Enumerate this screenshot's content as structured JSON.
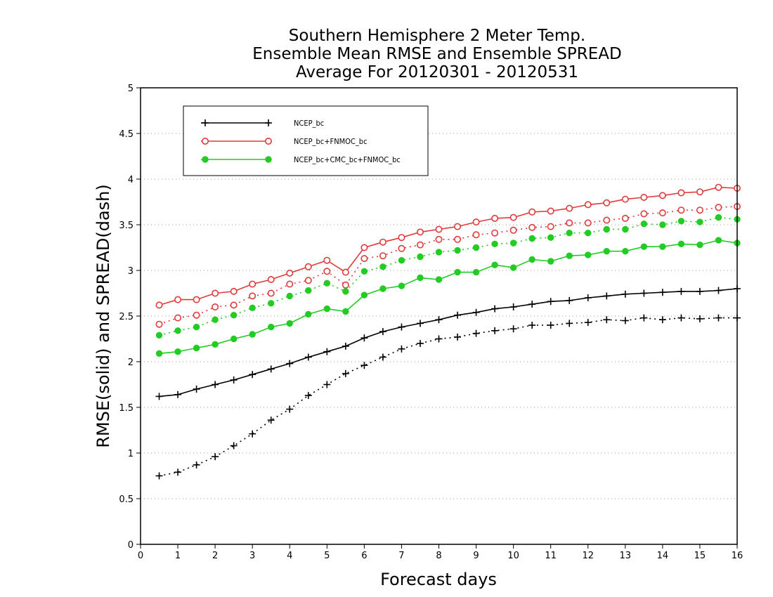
{
  "chart_data": {
    "type": "line",
    "title": [
      "Southern Hemisphere 2 Meter Temp.",
      "Ensemble Mean RMSE and Ensemble SPREAD",
      "Average For 20120301 - 20120531"
    ],
    "xlabel": "Forecast days",
    "ylabel": "RMSE(solid) and SPREAD(dash)",
    "xlim": [
      0,
      16
    ],
    "ylim": [
      0,
      5
    ],
    "x_ticks": [
      "0",
      "1",
      "2",
      "3",
      "4",
      "5",
      "6",
      "7",
      "8",
      "9",
      "10",
      "11",
      "12",
      "13",
      "14",
      "15",
      "16"
    ],
    "y_ticks": [
      "0",
      "0.5",
      "1",
      "1.5",
      "2",
      "2.5",
      "3",
      "3.5",
      "4",
      "4.5",
      "5"
    ],
    "grid": "horizontal dotted",
    "legend_position": "top-left",
    "x": [
      0.5,
      1,
      1.5,
      2,
      2.5,
      3,
      3.5,
      4,
      4.5,
      5,
      5.5,
      6,
      6.5,
      7,
      7.5,
      8,
      8.5,
      9,
      9.5,
      10,
      10.5,
      11,
      11.5,
      12,
      12.5,
      13,
      13.5,
      14,
      14.5,
      15,
      15.5,
      16
    ],
    "series": [
      {
        "name": "NCEP_bc",
        "color": "#000000",
        "marker": "plus",
        "rmse": [
          1.62,
          1.64,
          1.7,
          1.75,
          1.8,
          1.86,
          1.92,
          1.98,
          2.05,
          2.11,
          2.17,
          2.26,
          2.33,
          2.38,
          2.42,
          2.46,
          2.51,
          2.54,
          2.58,
          2.6,
          2.63,
          2.66,
          2.67,
          2.7,
          2.72,
          2.74,
          2.75,
          2.76,
          2.77,
          2.77,
          2.78,
          2.8
        ],
        "spread": [
          0.75,
          0.79,
          0.87,
          0.96,
          1.08,
          1.21,
          1.36,
          1.48,
          1.63,
          1.75,
          1.87,
          1.96,
          2.05,
          2.14,
          2.2,
          2.25,
          2.27,
          2.31,
          2.34,
          2.36,
          2.4,
          2.4,
          2.42,
          2.43,
          2.46,
          2.45,
          2.48,
          2.46,
          2.48,
          2.47,
          2.48,
          2.48
        ]
      },
      {
        "name": "NCEP_bc+FNMOC_bc",
        "color": "#e03a3a",
        "marker": "open-circle",
        "rmse": [
          2.62,
          2.68,
          2.68,
          2.75,
          2.77,
          2.85,
          2.9,
          2.97,
          3.04,
          3.11,
          2.98,
          3.25,
          3.31,
          3.36,
          3.42,
          3.45,
          3.48,
          3.53,
          3.57,
          3.58,
          3.64,
          3.65,
          3.68,
          3.72,
          3.74,
          3.78,
          3.8,
          3.82,
          3.85,
          3.86,
          3.91,
          3.9
        ],
        "spread": [
          2.41,
          2.48,
          2.51,
          2.6,
          2.62,
          2.72,
          2.75,
          2.85,
          2.89,
          2.99,
          2.84,
          3.13,
          3.16,
          3.24,
          3.28,
          3.34,
          3.34,
          3.39,
          3.41,
          3.44,
          3.47,
          3.48,
          3.52,
          3.52,
          3.55,
          3.57,
          3.62,
          3.63,
          3.66,
          3.66,
          3.69,
          3.7
        ]
      },
      {
        "name": "NCEP_bc+CMC_bc+FNMOC_bc",
        "color": "#22cc22",
        "marker": "filled-circle",
        "rmse": [
          2.09,
          2.11,
          2.15,
          2.19,
          2.25,
          2.3,
          2.38,
          2.42,
          2.52,
          2.58,
          2.55,
          2.73,
          2.8,
          2.83,
          2.92,
          2.9,
          2.98,
          2.98,
          3.06,
          3.03,
          3.12,
          3.1,
          3.16,
          3.17,
          3.21,
          3.21,
          3.26,
          3.26,
          3.29,
          3.28,
          3.33,
          3.3
        ],
        "spread": [
          2.29,
          2.34,
          2.38,
          2.46,
          2.51,
          2.59,
          2.64,
          2.72,
          2.78,
          2.86,
          2.77,
          2.99,
          3.04,
          3.11,
          3.15,
          3.2,
          3.22,
          3.25,
          3.29,
          3.3,
          3.35,
          3.36,
          3.41,
          3.41,
          3.45,
          3.45,
          3.51,
          3.5,
          3.54,
          3.53,
          3.58,
          3.56
        ]
      }
    ]
  }
}
